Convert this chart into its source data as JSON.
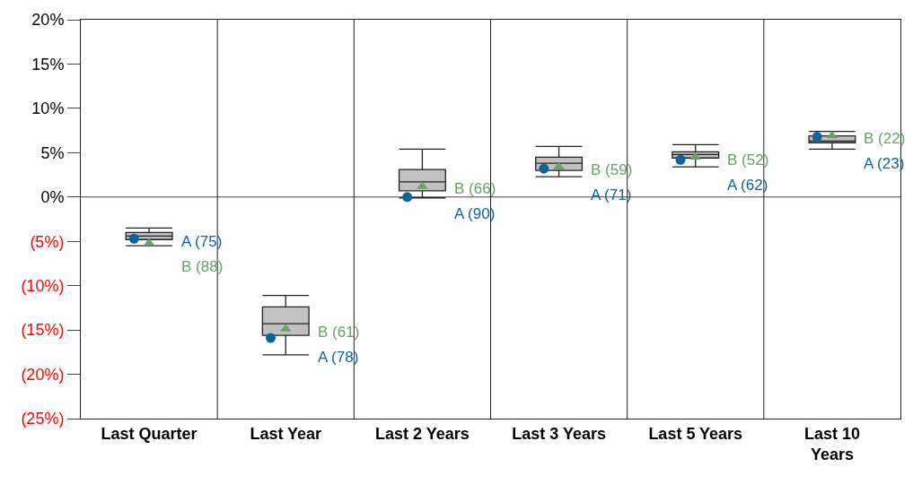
{
  "chart_data": {
    "type": "box",
    "categories": [
      "Last Quarter",
      "Last Year",
      "Last 2 Years",
      "Last 3 Years",
      "Last 5 Years",
      "Last 10 Years"
    ],
    "boxes": [
      {
        "low": -5.5,
        "q1": -4.8,
        "median": -4.4,
        "q3": -4.0,
        "high": -3.5
      },
      {
        "low": -17.8,
        "q1": -15.6,
        "median": -14.3,
        "q3": -12.4,
        "high": -11.1
      },
      {
        "low": -0.1,
        "q1": 0.7,
        "median": 1.7,
        "q3": 3.1,
        "high": 5.4
      },
      {
        "low": 2.3,
        "q1": 3.0,
        "median": 3.8,
        "q3": 4.5,
        "high": 5.7
      },
      {
        "low": 3.4,
        "q1": 4.4,
        "median": 4.8,
        "q3": 5.1,
        "high": 5.9
      },
      {
        "low": 5.4,
        "q1": 6.1,
        "median": 6.3,
        "q3": 6.9,
        "high": 7.4
      }
    ],
    "color": "#c0c0c0",
    "series": [
      {
        "type": "scatter",
        "marker": "circle",
        "color": "#0a64a0",
        "values": [
          -4.7,
          -15.9,
          0.0,
          3.2,
          4.2,
          6.8
        ]
      },
      {
        "type": "scatter",
        "marker": "triangle",
        "color": "#6aa06a",
        "values": [
          -5.2,
          -14.9,
          1.2,
          3.4,
          4.5,
          6.9
        ]
      }
    ],
    "annotations": [
      {
        "text": "A (75)",
        "x": "Last Quarter",
        "y": -4.7
      },
      {
        "text": "B (88)",
        "x": "Last Quarter",
        "y": -5.2
      },
      {
        "text": "B (61)",
        "x": "Last Year",
        "y": -14.9
      },
      {
        "text": "A (78)",
        "x": "Last Year",
        "y": -15.9
      },
      {
        "text": "B (66)",
        "x": "Last 2 Years",
        "y": 1.2
      },
      {
        "text": "A (90)",
        "x": "Last 2 Years",
        "y": 0.0
      },
      {
        "text": "B (59)",
        "x": "Last 3 Years",
        "y": 3.4
      },
      {
        "text": "A (71)",
        "x": "Last 3 Years",
        "y": 3.2
      },
      {
        "text": "B (52)",
        "x": "Last 5 Years",
        "y": 4.5
      },
      {
        "text": "A (62)",
        "x": "Last 5 Years",
        "y": 4.2
      },
      {
        "text": "B (22)",
        "x": "Last 10 Years",
        "y": 6.9
      },
      {
        "text": "A (23)",
        "x": "Last 10 Years",
        "y": 6.8
      }
    ],
    "ylim": [
      -25,
      20
    ],
    "yticks": [
      {
        "value": 20,
        "label": "20%"
      },
      {
        "value": 15,
        "label": "15%"
      },
      {
        "value": 10,
        "label": "10%"
      },
      {
        "value": 5,
        "label": "5%"
      },
      {
        "value": 0,
        "label": "0%"
      },
      {
        "value": -5,
        "label": "(5%)"
      },
      {
        "value": -10,
        "label": "(10%)"
      },
      {
        "value": -15,
        "label": "(15%)"
      },
      {
        "value": -20,
        "label": "(20%)"
      },
      {
        "value": -25,
        "label": "(25%)"
      }
    ],
    "grid": "x",
    "ref_lines": [
      {
        "axis": "y",
        "value": 0,
        "color": "#444444"
      }
    ]
  }
}
